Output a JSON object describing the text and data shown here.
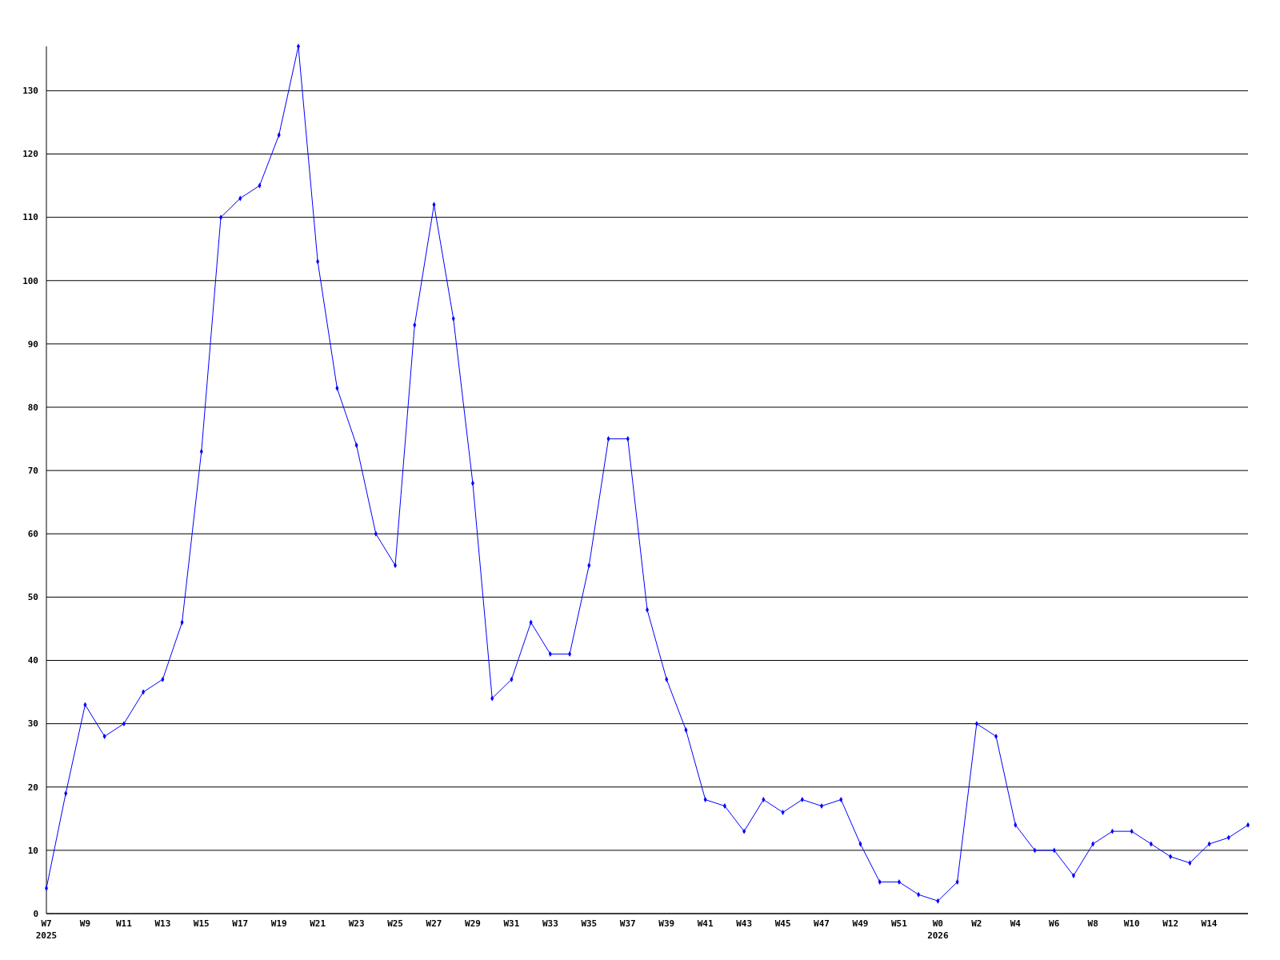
{
  "chart_data": {
    "type": "line",
    "categories": [
      "W7\n2025",
      null,
      "W9",
      null,
      "W11",
      null,
      "W13",
      null,
      "W15",
      null,
      "W17",
      null,
      "W19",
      null,
      "W21",
      null,
      "W23",
      null,
      "W25",
      null,
      "W27",
      null,
      "W29",
      null,
      "W31",
      null,
      "W33",
      null,
      "W35",
      null,
      "W37",
      null,
      "W39",
      null,
      "W41",
      null,
      "W43",
      null,
      "W45",
      null,
      "W47",
      null,
      "W49",
      null,
      "W51",
      null,
      "W0\n2026",
      null,
      "W2",
      null,
      "W4",
      null,
      "W6",
      null,
      "W8",
      null,
      "W10",
      null,
      "W12",
      null,
      "W14",
      null,
      null
    ],
    "series": [
      {
        "color": "#0000ff",
        "values": [
          4,
          19,
          33,
          28,
          30,
          35,
          37,
          46,
          73,
          110,
          113,
          115,
          123,
          137,
          103,
          83,
          74,
          60,
          55,
          93,
          112,
          94,
          68,
          34,
          37,
          46,
          41,
          41,
          55,
          75,
          75,
          48,
          37,
          29,
          18,
          17,
          13,
          18,
          16,
          18,
          17,
          18,
          11,
          5,
          5,
          3,
          2,
          5,
          30,
          28,
          14,
          10,
          10,
          6,
          11,
          13,
          13,
          11,
          9,
          8,
          11,
          12,
          14
        ]
      }
    ],
    "ylim": [
      0,
      137
    ],
    "yticks": [
      0,
      10,
      20,
      30,
      40,
      50,
      60,
      70,
      80,
      90,
      100,
      110,
      120,
      130
    ],
    "grid": "y",
    "marker": "diamond"
  }
}
